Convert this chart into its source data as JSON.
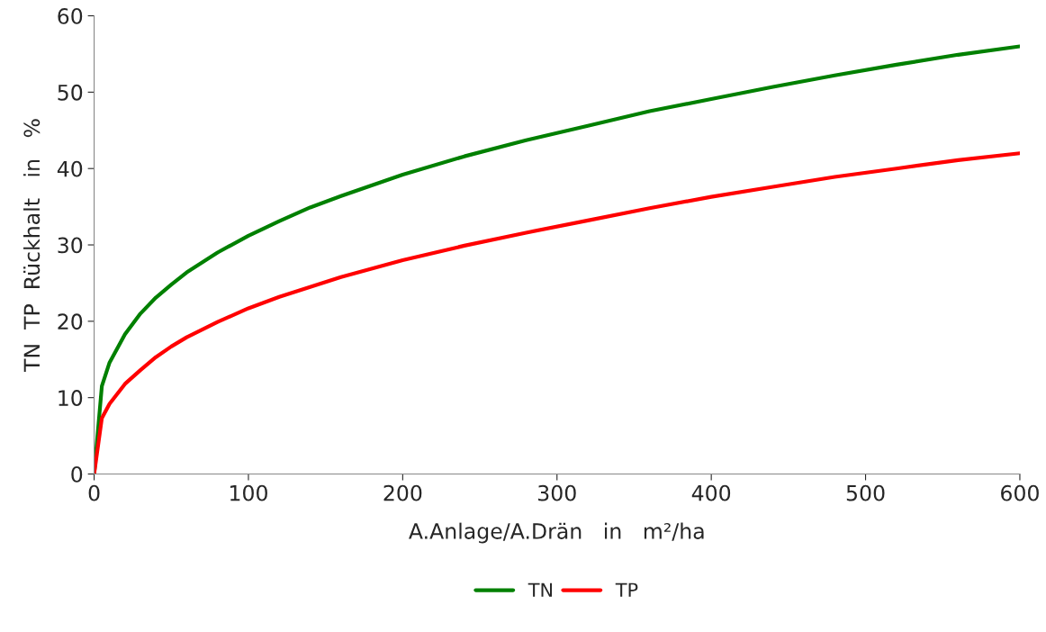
{
  "chart_data": {
    "type": "line",
    "xlabel": "A.Anlage/A.Drän   in   m²/ha",
    "ylabel": "TN  TP  Rückhalt   in   %",
    "x": [
      0,
      5,
      10,
      20,
      30,
      40,
      50,
      60,
      80,
      100,
      120,
      140,
      160,
      200,
      240,
      280,
      320,
      360,
      400,
      440,
      480,
      520,
      560,
      600
    ],
    "series": [
      {
        "name": "TN",
        "color": "#008000",
        "values": [
          0,
          11.5,
          14.6,
          18.3,
          21.0,
          23.1,
          24.8,
          26.4,
          29.0,
          31.2,
          33.1,
          34.9,
          36.4,
          39.2,
          41.6,
          43.7,
          45.6,
          47.5,
          49.1,
          50.7,
          52.2,
          53.6,
          54.9,
          56.0
        ]
      },
      {
        "name": "TP",
        "color": "#ff0000",
        "values": [
          0,
          7.3,
          9.2,
          11.8,
          13.6,
          15.3,
          16.7,
          17.9,
          19.9,
          21.7,
          23.2,
          24.5,
          25.8,
          28.0,
          29.9,
          31.6,
          33.2,
          34.8,
          36.3,
          37.6,
          38.9,
          40.0,
          41.1,
          42.0
        ]
      }
    ],
    "xlim": [
      0,
      600
    ],
    "xticks": [
      0,
      100,
      200,
      300,
      400,
      500,
      600
    ],
    "ylim": [
      0,
      60
    ],
    "yticks": [
      0,
      10,
      20,
      30,
      40,
      50,
      60
    ],
    "grid": false,
    "legend": "bottom",
    "marker": "none",
    "line_style": "solid"
  }
}
